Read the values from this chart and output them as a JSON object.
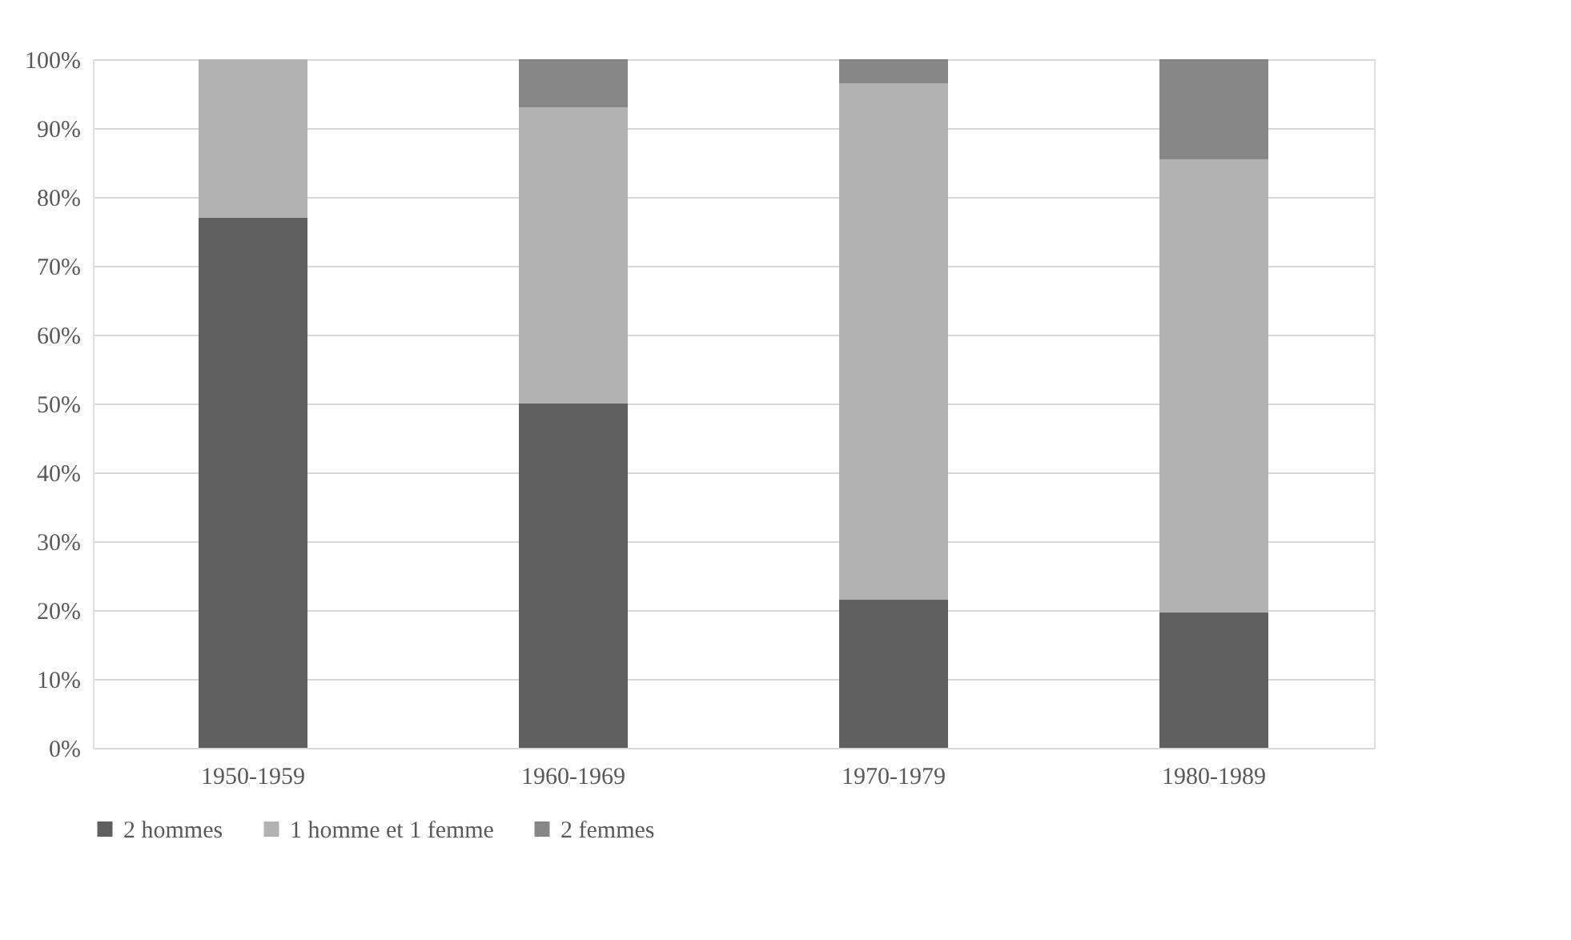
{
  "chart_data": {
    "type": "bar",
    "stacked": true,
    "categories": [
      "1950-1959",
      "1960-1969",
      "1970-1979",
      "1980-1989"
    ],
    "series": [
      {
        "name": "2 hommes",
        "color": "#5f5f5f",
        "values": [
          77,
          50,
          21.5,
          19.7
        ]
      },
      {
        "name": "1 homme et 1 femme",
        "color": "#b2b2b2",
        "values": [
          23,
          43,
          75,
          65.7
        ]
      },
      {
        "name": "2 femmes",
        "color": "#878787",
        "values": [
          0,
          7,
          3.5,
          14.6
        ]
      }
    ],
    "ylim": [
      0,
      100
    ],
    "yticks": [
      {
        "value": 0,
        "label": "0%"
      },
      {
        "value": 10,
        "label": "10%"
      },
      {
        "value": 20,
        "label": "20%"
      },
      {
        "value": 30,
        "label": "30%"
      },
      {
        "value": 40,
        "label": "40%"
      },
      {
        "value": 50,
        "label": "50%"
      },
      {
        "value": 60,
        "label": "60%"
      },
      {
        "value": 70,
        "label": "70%"
      },
      {
        "value": 80,
        "label": "80%"
      },
      {
        "value": 90,
        "label": "90%"
      },
      {
        "value": 100,
        "label": "100%"
      }
    ],
    "grid": "y",
    "legend": "bottom"
  }
}
